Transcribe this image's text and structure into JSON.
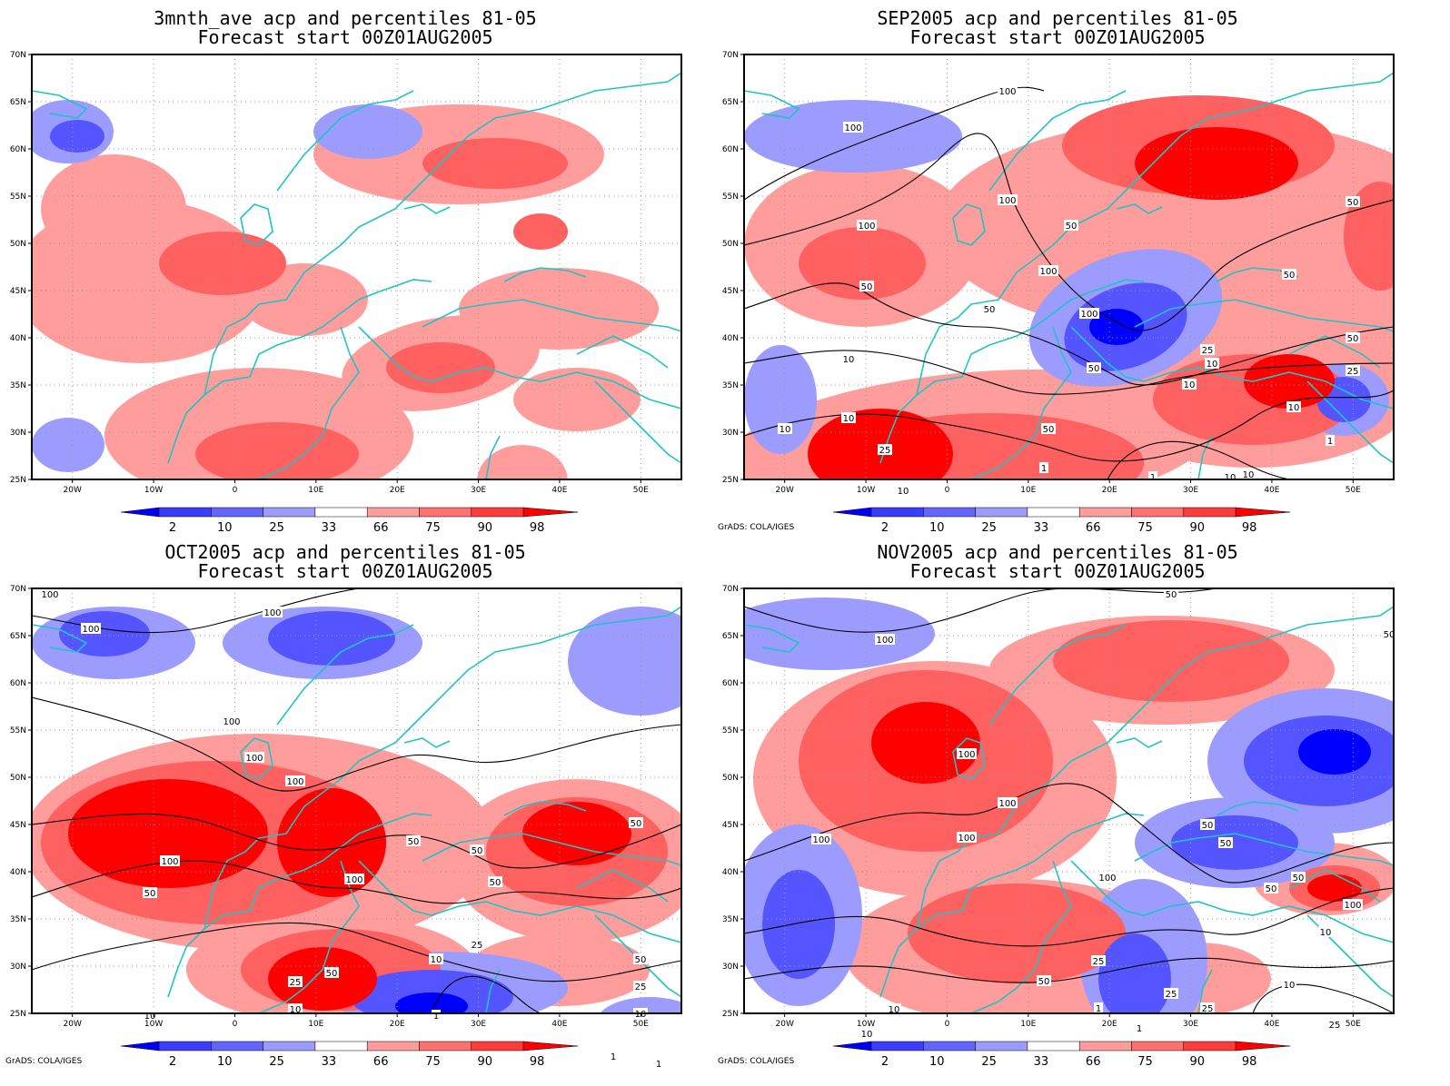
{
  "credit": "GrADS: COLA/IGES",
  "colors": {
    "blue_dark": "#0000ff",
    "blue_mid": "#5555ff",
    "blue_light": "#9c9cff",
    "red_light": "#ff9c9c",
    "red_mid": "#ff6060",
    "red_dark": "#ff0000",
    "coast": "#20c4c4",
    "contour": "#000000"
  },
  "colorbar": {
    "labels": [
      "2",
      "10",
      "25",
      "33",
      "66",
      "75",
      "90",
      "98"
    ],
    "colors": [
      "#0000ff",
      "#3c3cff",
      "#6464ff",
      "#9c9cff",
      "#ffffff",
      "#ff9c9c",
      "#ff7070",
      "#ff3c3c",
      "#ff0000"
    ]
  },
  "axes": {
    "lat_labels": [
      "70N",
      "65N",
      "60N",
      "55N",
      "50N",
      "45N",
      "40N",
      "35N",
      "30N",
      "25N"
    ],
    "lon_labels": [
      "20W",
      "10W",
      "0",
      "10E",
      "20E",
      "30E",
      "40E",
      "50E"
    ]
  },
  "panels": [
    {
      "title_line1": "3mnth_ave acp and percentiles 81-05",
      "title_line2": "Forecast start 00Z01AUG2005",
      "show_credit": false,
      "contour_labels": []
    },
    {
      "title_line1": "SEP2005 acp and percentiles 81-05",
      "title_line2": "Forecast start 00Z01AUG2005",
      "show_credit": true,
      "contour_labels": [
        "100",
        "100",
        "100",
        "100",
        "50",
        "100",
        "50",
        "50",
        "100",
        "50",
        "50",
        "25",
        "10",
        "50",
        "10",
        "10",
        "10",
        "50",
        "10",
        "25",
        "10",
        "10",
        "1",
        "1",
        "10",
        "1",
        "50",
        "25",
        "10"
      ]
    },
    {
      "title_line1": "OCT2005 acp and percentiles 81-05",
      "title_line2": "Forecast start 00Z01AUG2005",
      "show_credit": true,
      "contour_labels": [
        "100",
        "100",
        "100",
        "100",
        "100",
        "100",
        "50",
        "50",
        "50",
        "50",
        "100",
        "100",
        "50",
        "25",
        "10",
        "50",
        "25",
        "10",
        "10",
        "1",
        "50",
        "25",
        "10",
        "1",
        "1"
      ]
    },
    {
      "title_line1": "NOV2005 acp and percentiles 81-05",
      "title_line2": "Forecast start 00Z01AUG2005",
      "show_credit": true,
      "contour_labels": [
        "50",
        "100",
        "50",
        "100",
        "100",
        "100",
        "100",
        "50",
        "100",
        "50",
        "50",
        "50",
        "100",
        "50",
        "10",
        "25",
        "25",
        "10",
        "10",
        "1",
        "10",
        "25",
        "1",
        "25"
      ]
    }
  ]
}
